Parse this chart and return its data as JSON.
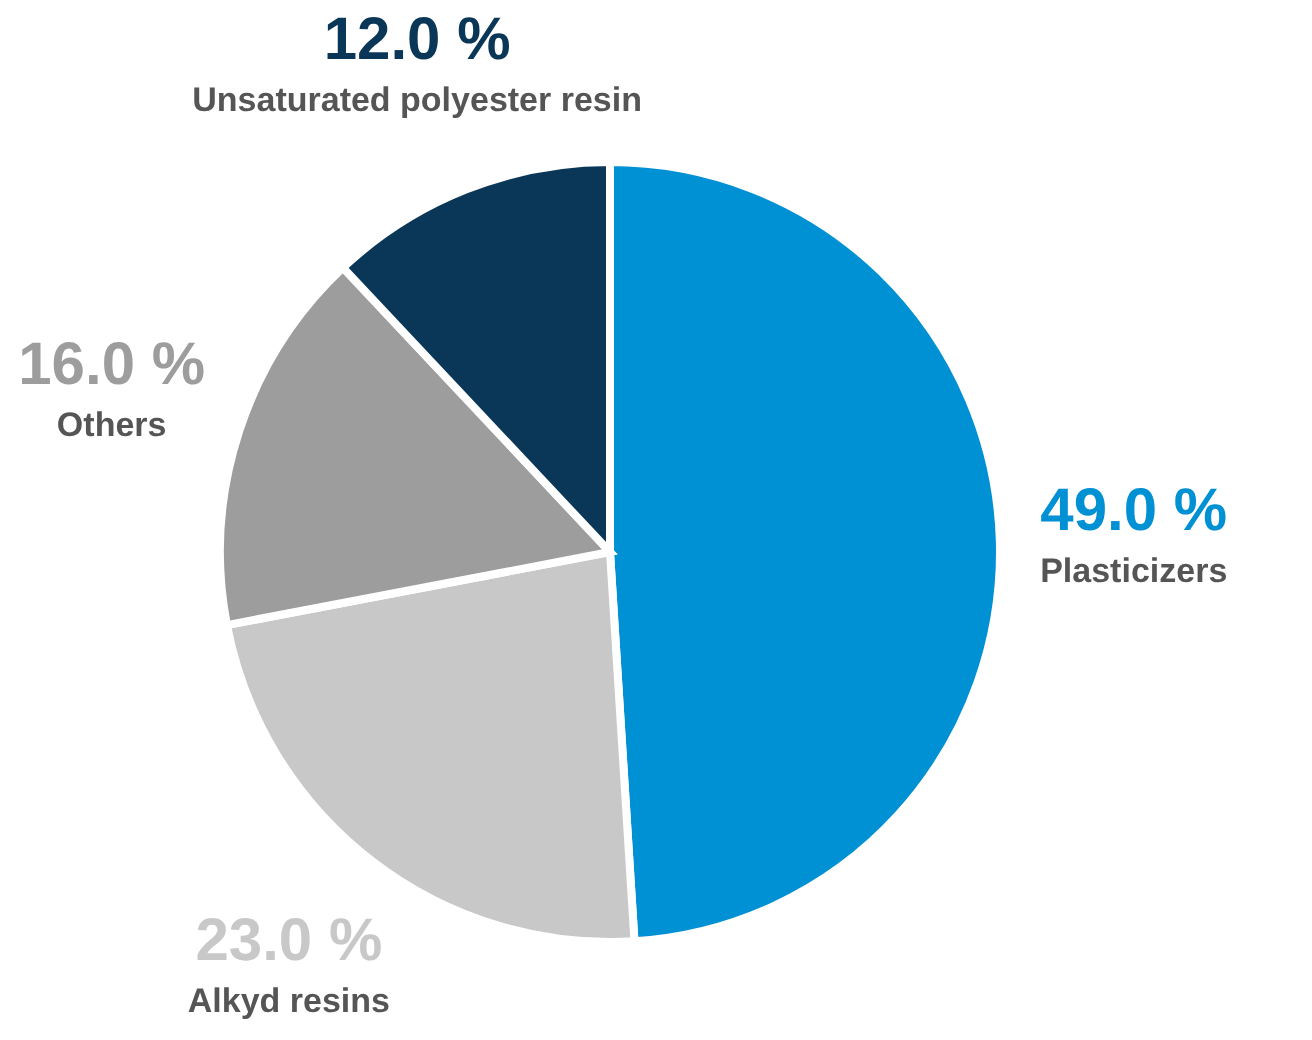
{
  "chart_data": {
    "type": "pie",
    "categories": [
      "Plasticizers",
      "Alkyd resins",
      "Others",
      "Unsaturated polyester resin"
    ],
    "values": [
      49.0,
      23.0,
      16.0,
      12.0
    ],
    "value_labels": [
      "49.0 %",
      "23.0 %",
      "16.0 %",
      "12.0 %"
    ],
    "colors": [
      "#0090d4",
      "#c8c8c8",
      "#9d9d9d",
      "#0a3657"
    ],
    "legend": false
  }
}
